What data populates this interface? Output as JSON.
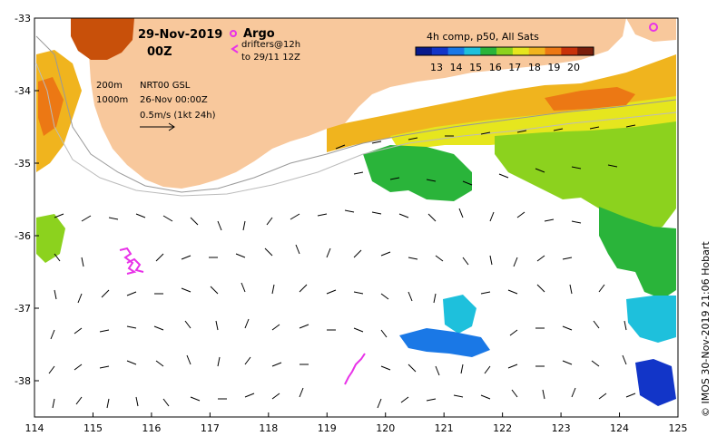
{
  "map": {
    "date_line1": "29-Nov-2019",
    "date_line2": "00Z",
    "argo_label": "Argo",
    "drifters_label": "drifters@12h",
    "drifters_period": "to 29/11 12Z",
    "product_label": "NRT00 GSL",
    "analysis_date": "26-Nov 00:00Z",
    "isobath_200": "200m",
    "isobath_1000": "1000m",
    "vector_scale": "0.5m/s (1kt 24h)",
    "copyright": "© IMOS 30-Nov-2019 21:06 Hobart",
    "lon_ticks": [
      "114",
      "115",
      "116",
      "117",
      "118",
      "119",
      "120",
      "121",
      "122",
      "123",
      "124",
      "125"
    ],
    "lat_ticks": [
      "-33",
      "-34",
      "-35",
      "-36",
      "-37",
      "-38"
    ],
    "lon_range": [
      114,
      125
    ],
    "lat_range": [
      -38.5,
      -33
    ]
  },
  "legend": {
    "title": "4h comp, p50, All Sats",
    "tick_labels": [
      "13",
      "14",
      "15",
      "16",
      "17",
      "18",
      "19",
      "20"
    ],
    "colors": [
      "#081a8c",
      "#1235c8",
      "#1a78e6",
      "#1ec0dc",
      "#2ab43a",
      "#8cd21e",
      "#e6e61e",
      "#f0b41e",
      "#ec7814",
      "#c8320a",
      "#7a1e0a"
    ]
  },
  "colors": {
    "land": "#f8c89c",
    "drifter": "#e832e8",
    "frame": "#000000"
  }
}
